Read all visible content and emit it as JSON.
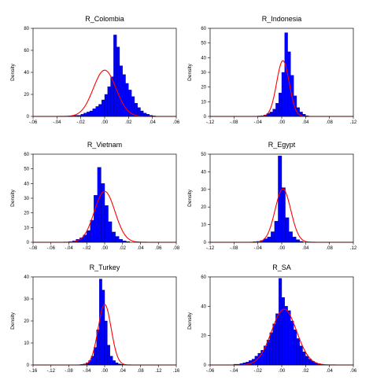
{
  "chart_data": [
    {
      "type": "bar",
      "title": "R_Colombia",
      "ylabel": "Density",
      "xlabel": "",
      "xlim": [
        -0.06,
        0.06
      ],
      "ylim": [
        0,
        80
      ],
      "xticks": [
        -0.06,
        -0.04,
        -0.02,
        0.0,
        0.02,
        0.04,
        0.06
      ],
      "xtick_labels": [
        "-.06",
        "-.04",
        "-.02",
        ".00",
        ".02",
        ".04",
        ".06"
      ],
      "yticks": [
        0,
        20,
        40,
        60,
        80
      ],
      "ytick_labels": [
        "0",
        "20",
        "40",
        "60",
        "80"
      ],
      "bin_width": 0.0025,
      "bin_start": -0.03,
      "values": [
        0.5,
        0.5,
        1,
        1,
        2,
        3,
        4,
        5,
        7,
        9,
        11,
        15,
        20,
        27,
        36,
        74,
        63,
        46,
        38,
        30,
        24,
        18,
        12,
        8,
        5,
        3,
        2,
        1,
        0.5
      ],
      "normal_curve": {
        "mean": 0.0,
        "sd": 0.0095,
        "color": "#ff0000"
      },
      "bar_color": "#0000ff"
    },
    {
      "type": "bar",
      "title": "R_Indonesia",
      "ylabel": "Density",
      "xlabel": "",
      "xlim": [
        -0.12,
        0.12
      ],
      "ylim": [
        0,
        60
      ],
      "xticks": [
        -0.12,
        -0.08,
        -0.04,
        0.0,
        0.04,
        0.08,
        0.12
      ],
      "xtick_labels": [
        "-.12",
        "-.08",
        "-.04",
        ".00",
        ".04",
        ".08",
        ".12"
      ],
      "yticks": [
        0,
        10,
        20,
        30,
        40,
        50,
        60
      ],
      "ytick_labels": [
        "0",
        "10",
        "20",
        "30",
        "40",
        "50",
        "60"
      ],
      "bin_width": 0.005,
      "bin_start": -0.04,
      "values": [
        0.3,
        0.5,
        1,
        2,
        3,
        5,
        9,
        16,
        30,
        57,
        44,
        28,
        14,
        6,
        3,
        1.5,
        0.5
      ],
      "normal_curve": {
        "mean": 0.002,
        "sd": 0.0105,
        "color": "#ff0000"
      },
      "bar_color": "#0000ff"
    },
    {
      "type": "bar",
      "title": "R_Vietnam",
      "ylabel": "Density",
      "xlabel": "",
      "xlim": [
        -0.08,
        0.08
      ],
      "ylim": [
        0,
        60
      ],
      "xticks": [
        -0.08,
        -0.06,
        -0.04,
        -0.02,
        0.0,
        0.02,
        0.04,
        0.06,
        0.08
      ],
      "xtick_labels": [
        "-.08",
        "-.06",
        "-.04",
        "-.02",
        ".00",
        ".02",
        ".04",
        ".06",
        ".08"
      ],
      "yticks": [
        0,
        10,
        20,
        30,
        40,
        50,
        60
      ],
      "ytick_labels": [
        "0",
        "10",
        "20",
        "30",
        "40",
        "50",
        "60"
      ],
      "bin_width": 0.004,
      "bin_start": -0.04,
      "values": [
        0.5,
        1,
        2,
        3,
        5,
        8,
        15,
        32,
        51,
        40,
        25,
        14,
        7,
        4,
        2,
        1,
        0.5
      ],
      "normal_curve": {
        "mean": 0.0,
        "sd": 0.0115,
        "color": "#ff0000"
      },
      "bar_color": "#0000ff"
    },
    {
      "type": "bar",
      "title": "R_Egypt",
      "ylabel": "Density",
      "xlabel": "",
      "xlim": [
        -0.12,
        0.12
      ],
      "ylim": [
        0,
        50
      ],
      "xticks": [
        -0.12,
        -0.08,
        -0.04,
        0.0,
        0.04,
        0.08,
        0.12
      ],
      "xtick_labels": [
        "-.12",
        "-.08",
        "-.04",
        ".00",
        ".04",
        ".08",
        ".12"
      ],
      "yticks": [
        0,
        10,
        20,
        30,
        40,
        50
      ],
      "ytick_labels": [
        "0",
        "10",
        "20",
        "30",
        "40",
        "50"
      ],
      "bin_width": 0.006,
      "bin_start": -0.048,
      "values": [
        0.3,
        0.5,
        1,
        2,
        3,
        6,
        12,
        49,
        31,
        14,
        6,
        3,
        1.5,
        0.5
      ],
      "normal_curve": {
        "mean": 0.002,
        "sd": 0.0132,
        "color": "#ff0000"
      },
      "bar_color": "#0000ff"
    },
    {
      "type": "bar",
      "title": "R_Turkey",
      "ylabel": "Density",
      "xlabel": "",
      "xlim": [
        -0.16,
        0.16
      ],
      "ylim": [
        0,
        40
      ],
      "xticks": [
        -0.16,
        -0.12,
        -0.08,
        -0.04,
        0.0,
        0.04,
        0.08,
        0.12,
        0.16
      ],
      "xtick_labels": [
        "-.16",
        "-.12",
        "-.08",
        "-.04",
        ".00",
        ".04",
        ".08",
        ".12",
        ".16"
      ],
      "yticks": [
        0,
        10,
        20,
        30,
        40
      ],
      "ytick_labels": [
        "0",
        "10",
        "20",
        "30",
        "40"
      ],
      "bin_width": 0.006,
      "bin_start": -0.054,
      "values": [
        0.3,
        0.5,
        1,
        2,
        4,
        8,
        16,
        39,
        34,
        20,
        9,
        4,
        2,
        1,
        0.5,
        0.3
      ],
      "normal_curve": {
        "mean": 0.0,
        "sd": 0.0145,
        "color": "#ff0000"
      },
      "bar_color": "#0000ff"
    },
    {
      "type": "bar",
      "title": "R_SA",
      "ylabel": "Density",
      "xlabel": "",
      "xlim": [
        -0.06,
        0.06
      ],
      "ylim": [
        0,
        60
      ],
      "xticks": [
        -0.06,
        -0.04,
        -0.02,
        0.0,
        0.02,
        0.04,
        0.06
      ],
      "xtick_labels": [
        "-.06",
        "-.04",
        "-.02",
        ".00",
        ".02",
        ".04",
        ".06"
      ],
      "yticks": [
        0,
        20,
        40,
        60
      ],
      "ytick_labels": [
        "0",
        "20",
        "40",
        "60"
      ],
      "bin_width": 0.0025,
      "bin_start": -0.04,
      "values": [
        0.5,
        0.5,
        1,
        1.5,
        2,
        3,
        4,
        6,
        8,
        10,
        13,
        17,
        22,
        28,
        35,
        59,
        46,
        40,
        37,
        30,
        24,
        18,
        13,
        9,
        6,
        4,
        2.5,
        1.5,
        1,
        0.5
      ],
      "normal_curve": {
        "mean": 0.002,
        "sd": 0.0105,
        "color": "#ff0000"
      },
      "bar_color": "#0000ff"
    }
  ]
}
